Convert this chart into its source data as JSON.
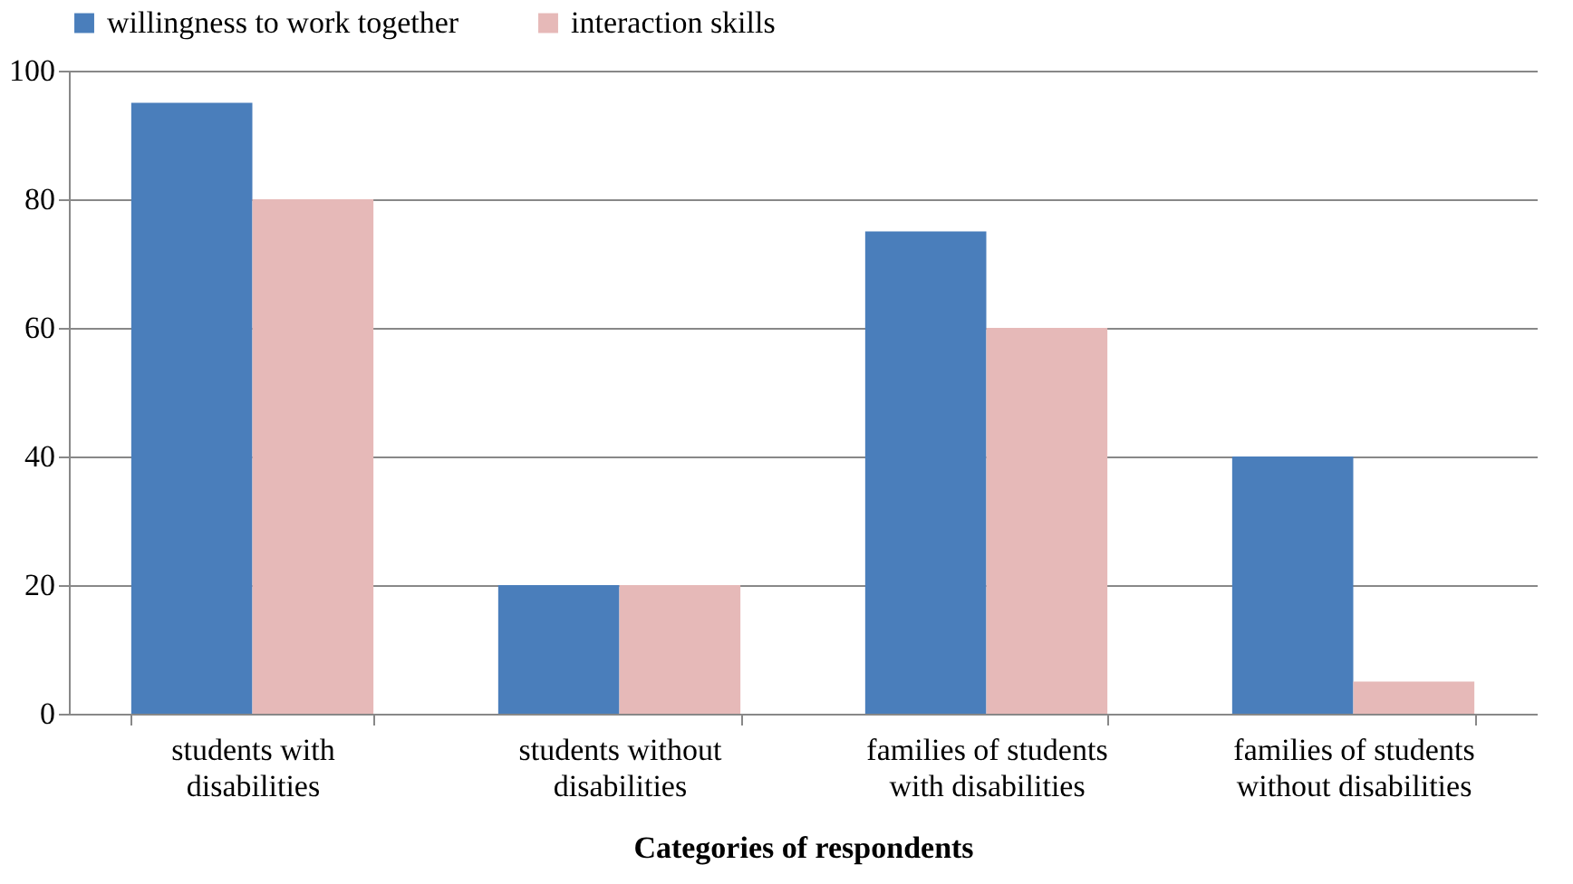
{
  "chart_data": {
    "type": "bar",
    "xlabel": "Categories of respondents",
    "categories": [
      "students with disabilities",
      "students without disabilities",
      "families of students with disabilities",
      "families of students without disabilities"
    ],
    "series": [
      {
        "name": "willingness to work together",
        "color": "#4a7ebb",
        "values": [
          95,
          20,
          75,
          40
        ]
      },
      {
        "name": "interaction skills",
        "color": "#e6b9b8",
        "values": [
          80,
          20,
          60,
          5
        ]
      }
    ],
    "ylim": [
      0,
      100
    ],
    "yticks": [
      0,
      20,
      40,
      60,
      80,
      100
    ],
    "grid": "y",
    "legend": "top"
  }
}
